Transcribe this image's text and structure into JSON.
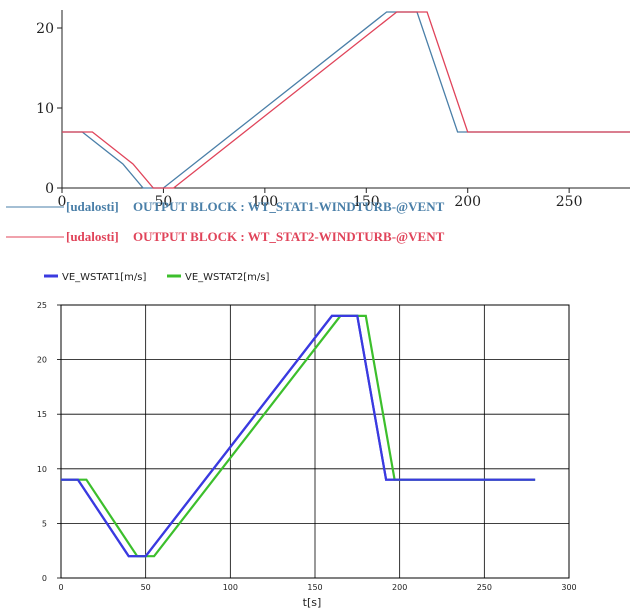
{
  "chart_data": [
    {
      "type": "line",
      "title": "",
      "xlabel": "",
      "ylabel": "",
      "xlim": [
        0,
        280
      ],
      "ylim": [
        0,
        22
      ],
      "x_ticks": [
        0,
        50,
        100,
        150,
        200,
        250
      ],
      "y_ticks": [
        0,
        10,
        20
      ],
      "grid": false,
      "legend_position": "bottom-left",
      "series": [
        {
          "name": "[udalosti]   OUTPUT BLOCK : WT_STAT1-WINDTURB-@VENT",
          "legend_prefix": "[udalosti]",
          "legend_text": "OUTPUT BLOCK : WT_STAT1-WINDTURB-@VENT",
          "color": "#4a7fa8",
          "x": [
            0,
            10,
            30,
            40,
            50,
            160,
            175,
            195,
            200,
            280
          ],
          "y": [
            7,
            7,
            3,
            0,
            0,
            22,
            22,
            7,
            7,
            7
          ]
        },
        {
          "name": "[udalosti]   OUTPUT BLOCK : WT_STAT2-WINDTURB-@VENT",
          "legend_prefix": "[udalosti]",
          "legend_text": "OUTPUT BLOCK : WT_STAT2-WINDTURB-@VENT",
          "color": "#e0445a",
          "x": [
            0,
            15,
            35,
            45,
            55,
            165,
            180,
            200,
            280
          ],
          "y": [
            7,
            7,
            3,
            0,
            0,
            22,
            22,
            7,
            7
          ]
        }
      ]
    },
    {
      "type": "line",
      "title": "",
      "xlabel": "t[s]",
      "ylabel": "",
      "xlim": [
        0,
        300
      ],
      "ylim": [
        0,
        25
      ],
      "x_ticks": [
        0,
        50,
        100,
        150,
        200,
        250,
        300
      ],
      "y_ticks": [
        0,
        5,
        10,
        15,
        20,
        25
      ],
      "grid": true,
      "legend_position": "top-left",
      "series": [
        {
          "name": "VE_WSTAT1[m/s]",
          "color": "#3a3ae0",
          "x": [
            0,
            10,
            40,
            50,
            160,
            175,
            192,
            280
          ],
          "y": [
            9,
            9,
            2,
            2,
            24,
            24,
            9,
            9
          ]
        },
        {
          "name": "VE_WSTAT2[m/s]",
          "color": "#3cbf2c",
          "x": [
            0,
            15,
            45,
            55,
            165,
            180,
            197,
            280
          ],
          "y": [
            9,
            9,
            2,
            2,
            24,
            24,
            9,
            9
          ]
        }
      ]
    }
  ]
}
